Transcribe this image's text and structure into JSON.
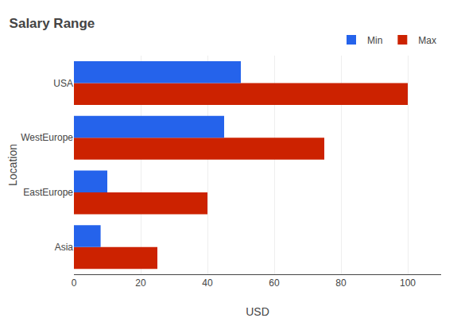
{
  "chart_data": {
    "type": "bar",
    "orientation": "horizontal",
    "title": "Salary Range",
    "xlabel": "USD",
    "ylabel": "Location",
    "categories": [
      "Asia",
      "EastEurope",
      "WestEurope",
      "USA"
    ],
    "series": [
      {
        "name": "Min",
        "color": "#2563EB",
        "values": [
          8,
          10,
          45,
          50
        ]
      },
      {
        "name": "Max",
        "color": "#CC2200",
        "values": [
          25,
          40,
          75,
          100
        ]
      }
    ],
    "xlim": [
      0,
      110
    ],
    "xticks": [
      0,
      20,
      40,
      60,
      80,
      100
    ],
    "grid": "x",
    "legend": "upper right"
  }
}
